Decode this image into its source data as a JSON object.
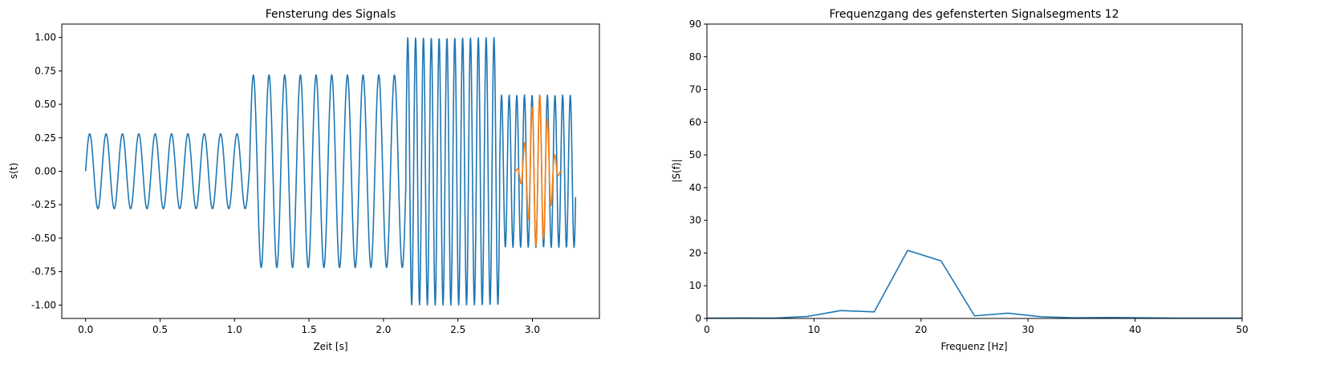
{
  "chart_data": [
    {
      "type": "line",
      "title": "Fensterung des Signals",
      "xlabel": "Zeit [s]",
      "ylabel": "s(t)",
      "xlim": [
        -0.16,
        3.45
      ],
      "ylim": [
        -1.1,
        1.1
      ],
      "xticks": [
        "0.0",
        "0.5",
        "1.0",
        "1.5",
        "2.0",
        "2.5",
        "3.0"
      ],
      "yticks": [
        "-1.00",
        "-0.75",
        "-0.50",
        "-0.25",
        "0.00",
        "0.25",
        "0.50",
        "0.75",
        "1.00"
      ],
      "grid": false,
      "series": [
        {
          "kind": "signal",
          "color": "#1f77b4",
          "segments": [
            {
              "t_start": 0.0,
              "t_end": 1.1,
              "amplitude": 0.28,
              "frequency_hz": 9.1
            },
            {
              "t_start": 1.1,
              "t_end": 2.15,
              "amplitude": 0.72,
              "frequency_hz": 9.5
            },
            {
              "t_start": 2.15,
              "t_end": 2.78,
              "amplitude": 1.0,
              "frequency_hz": 19.0
            },
            {
              "t_start": 2.78,
              "t_end": 3.29,
              "amplitude": 0.57,
              "frequency_hz": 19.5
            }
          ]
        },
        {
          "kind": "windowed-segment",
          "color": "#ff7f0e",
          "window": "hann",
          "t_start": 2.88,
          "t_end": 3.2,
          "amplitude": 0.57,
          "frequency_hz": 19.5
        }
      ]
    },
    {
      "type": "line",
      "title": "Frequenzgang des gefensterten Signalsegments 12",
      "xlabel": "Frequenz [Hz]",
      "ylabel": "|S(f)|",
      "xlim": [
        0,
        50
      ],
      "ylim": [
        0,
        90
      ],
      "xticks": [
        "0",
        "10",
        "20",
        "30",
        "40",
        "50"
      ],
      "yticks": [
        "0",
        "10",
        "20",
        "30",
        "40",
        "50",
        "60",
        "70",
        "80",
        "90"
      ],
      "grid": false,
      "series": [
        {
          "color": "#1f77b4",
          "x": [
            0,
            3.125,
            6.25,
            9.375,
            12.5,
            15.625,
            18.75,
            21.875,
            25.0,
            28.125,
            31.25,
            34.375,
            37.5,
            40.625,
            43.75,
            46.875,
            50
          ],
          "y": [
            0.1,
            0.15,
            0.1,
            0.6,
            2.4,
            2.0,
            20.8,
            17.6,
            0.8,
            1.6,
            0.5,
            0.2,
            0.3,
            0.2,
            0.1,
            0.1,
            0.1
          ]
        }
      ]
    }
  ]
}
